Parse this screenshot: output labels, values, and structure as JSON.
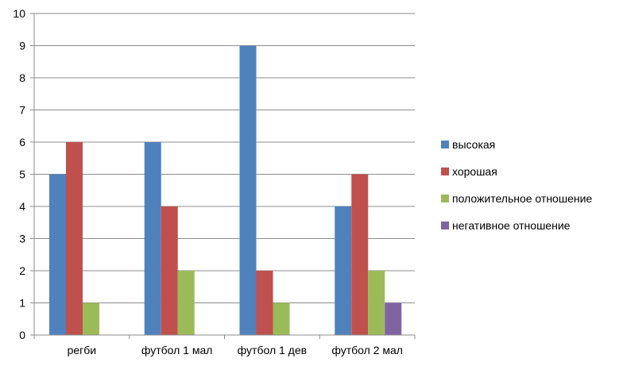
{
  "chart_data": {
    "type": "bar",
    "categories": [
      "регби",
      "футбол 1 мал",
      "футбол 1 дев",
      "футбол 2 мал"
    ],
    "series": [
      {
        "name": "высокая",
        "color": "#4F81BD",
        "values": [
          5,
          6,
          9,
          4
        ]
      },
      {
        "name": "хорошая",
        "color": "#C0504D",
        "values": [
          6,
          4,
          2,
          5
        ]
      },
      {
        "name": "положительное отношение",
        "color": "#9BBB59",
        "values": [
          1,
          2,
          1,
          2
        ]
      },
      {
        "name": "негативное отношение",
        "color": "#8064A2",
        "values": [
          0,
          0,
          0,
          1
        ]
      }
    ],
    "ylim": [
      0,
      10
    ],
    "yticks": [
      0,
      1,
      2,
      3,
      4,
      5,
      6,
      7,
      8,
      9,
      10
    ],
    "grid": true,
    "legend_position": "right"
  }
}
